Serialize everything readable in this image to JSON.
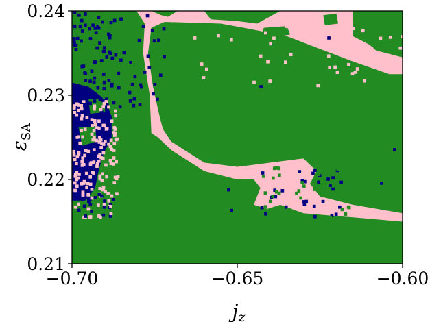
{
  "chart_data": {
    "type": "heatmap",
    "title": "",
    "xlabel": "j",
    "xlabel_sub": "z",
    "ylabel": "ε",
    "ylabel_sub": "SA",
    "xlim": [
      -0.7,
      -0.6
    ],
    "ylim": [
      0.21,
      0.24
    ],
    "x_ticks": [
      {
        "value": -0.7,
        "label": "−0.70"
      },
      {
        "value": -0.65,
        "label": "−0.65"
      },
      {
        "value": -0.6,
        "label": "−0.60"
      }
    ],
    "y_ticks": [
      {
        "value": 0.21,
        "label": "0.21"
      },
      {
        "value": 0.22,
        "label": "0.22"
      },
      {
        "value": 0.23,
        "label": "0.23"
      },
      {
        "value": 0.24,
        "label": "0.24"
      }
    ],
    "grid": false,
    "categories": [
      {
        "name": "green-region",
        "color": "#228b22"
      },
      {
        "name": "pink-region",
        "color": "#ffc0cb"
      },
      {
        "name": "navy-region",
        "color": "#000080"
      }
    ],
    "background_category": "green-region",
    "regions": [
      {
        "category": "pink-region",
        "polygon": [
          [
            -0.7,
            0.24
          ],
          [
            -0.6805,
            0.24
          ],
          [
            -0.678,
            0.2385
          ],
          [
            -0.6785,
            0.235
          ],
          [
            -0.6765,
            0.23
          ],
          [
            -0.676,
            0.2255
          ],
          [
            -0.674,
            0.225
          ],
          [
            -0.67,
            0.2235
          ],
          [
            -0.66,
            0.221
          ],
          [
            -0.65,
            0.22
          ],
          [
            -0.645,
            0.22
          ],
          [
            -0.643,
            0.219
          ],
          [
            -0.645,
            0.217
          ],
          [
            -0.641,
            0.2165
          ],
          [
            -0.637,
            0.217
          ],
          [
            -0.63,
            0.216
          ],
          [
            -0.615,
            0.2155
          ],
          [
            -0.6,
            0.215
          ],
          [
            -0.6,
            0.216
          ],
          [
            -0.615,
            0.217
          ],
          [
            -0.625,
            0.218
          ],
          [
            -0.628,
            0.2195
          ],
          [
            -0.626,
            0.221
          ],
          [
            -0.63,
            0.2225
          ],
          [
            -0.64,
            0.222
          ],
          [
            -0.65,
            0.2215
          ],
          [
            -0.66,
            0.222
          ],
          [
            -0.67,
            0.2245
          ],
          [
            -0.6725,
            0.226
          ],
          [
            -0.6735,
            0.2275
          ],
          [
            -0.6755,
            0.231
          ],
          [
            -0.677,
            0.235
          ],
          [
            -0.676,
            0.238
          ],
          [
            -0.672,
            0.2387
          ],
          [
            -0.655,
            0.2385
          ],
          [
            -0.648,
            0.238
          ],
          [
            -0.635,
            0.237
          ],
          [
            -0.627,
            0.2358
          ],
          [
            -0.615,
            0.234
          ],
          [
            -0.604,
            0.2325
          ],
          [
            -0.6,
            0.2325
          ],
          [
            -0.6,
            0.2345
          ],
          [
            -0.603,
            0.2348
          ],
          [
            -0.608,
            0.2353
          ],
          [
            -0.61,
            0.236
          ],
          [
            -0.615,
            0.237
          ],
          [
            -0.615,
            0.24
          ],
          [
            -0.637,
            0.24
          ],
          [
            -0.644,
            0.2385
          ],
          [
            -0.65,
            0.2388
          ],
          [
            -0.658,
            0.239
          ],
          [
            -0.66,
            0.24
          ],
          [
            -0.668,
            0.24
          ],
          [
            -0.671,
            0.2393
          ],
          [
            -0.673,
            0.2395
          ],
          [
            -0.676,
            0.24
          ]
        ]
      },
      {
        "category": "navy-region",
        "polygon": [
          [
            -0.7,
            0.2315
          ],
          [
            -0.695,
            0.231
          ],
          [
            -0.69,
            0.2295
          ],
          [
            -0.688,
            0.2275
          ],
          [
            -0.688,
            0.225
          ],
          [
            -0.6905,
            0.223
          ],
          [
            -0.692,
            0.221
          ],
          [
            -0.693,
            0.219
          ],
          [
            -0.696,
            0.2175
          ],
          [
            -0.7,
            0.2175
          ]
        ]
      },
      {
        "category": "green-region",
        "polygon": [
          [
            -0.698,
            0.2262
          ],
          [
            -0.693,
            0.2263
          ],
          [
            -0.6925,
            0.2245
          ],
          [
            -0.697,
            0.224
          ]
        ]
      },
      {
        "category": "green-region",
        "polygon": [
          [
            -0.695,
            0.2295
          ],
          [
            -0.69,
            0.2297
          ],
          [
            -0.69,
            0.228
          ],
          [
            -0.6945,
            0.2278
          ]
        ]
      },
      {
        "category": "green-region",
        "polygon": [
          [
            -0.642,
            0.238
          ],
          [
            -0.635,
            0.2382
          ],
          [
            -0.634,
            0.2372
          ],
          [
            -0.64,
            0.2368
          ],
          [
            -0.6425,
            0.2372
          ]
        ]
      },
      {
        "category": "green-region",
        "polygon": [
          [
            -0.624,
            0.2395
          ],
          [
            -0.62,
            0.2397
          ],
          [
            -0.6195,
            0.2385
          ],
          [
            -0.6235,
            0.2383
          ]
        ]
      }
    ]
  }
}
